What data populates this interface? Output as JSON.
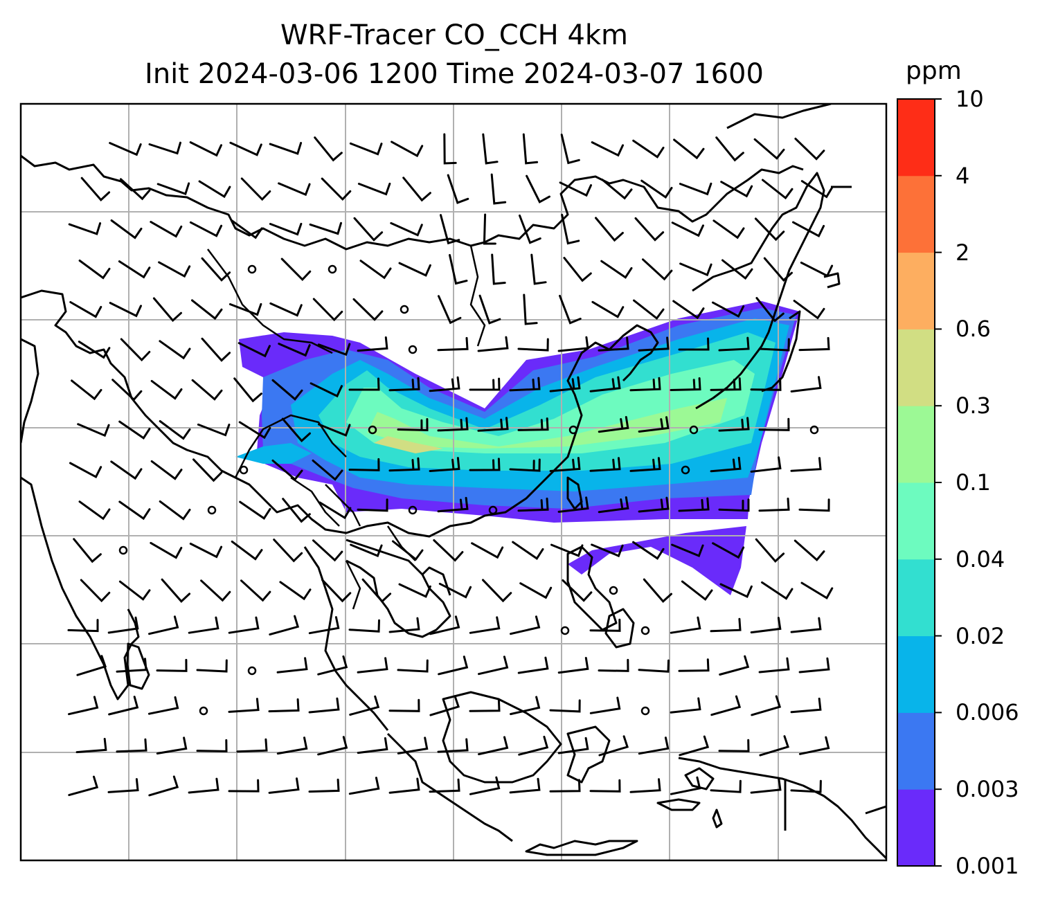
{
  "title_line1": "WRF-Tracer CO_CCH 4km",
  "title_line2": "Init 2024-03-06 1200 Time 2024-03-07 1600",
  "colorbar": {
    "unit": "ppm",
    "levels": [
      "0.001",
      "0.003",
      "0.006",
      "0.02",
      "0.04",
      "0.1",
      "0.3",
      "0.6",
      "2",
      "4",
      "10"
    ],
    "colors": [
      "#6a2bfa",
      "#3b78f2",
      "#08b4ea",
      "#32dfd0",
      "#6dfbbf",
      "#9cf995",
      "#d1de83",
      "#fdae60",
      "#fd7138",
      "#fe2d17"
    ]
  },
  "map": {
    "gridlines": true,
    "features": [
      "coastlines",
      "country-borders",
      "wind-barbs",
      "tracer-concentration-fill"
    ]
  }
}
